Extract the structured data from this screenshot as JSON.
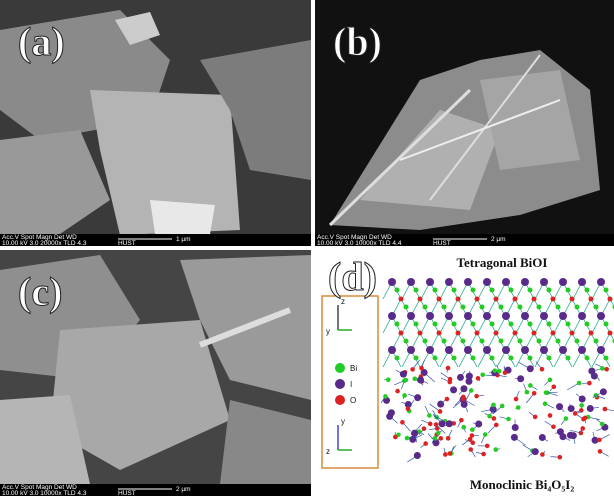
{
  "panels": [
    {
      "label": "(a)",
      "info_header": "Acc.V  Spot  Magn   Det  WD",
      "info_values": "10.00 kV 3.0  20000x  TLD  4.3",
      "scale": "1 µm",
      "lab": "HUST"
    },
    {
      "label": "(b)",
      "info_header": "Acc.V  Spot  Magn   Det  WD",
      "info_values": "10.00 kV 3.0  10000x  TLD  4.4",
      "scale": "2 µm",
      "lab": "HUST"
    },
    {
      "label": "(c)",
      "info_header": "Acc.V  Spot  Magn   Det  WD",
      "info_values": "10.00 kV 3.0  10000x  TLD  4.3",
      "scale": "2 µm",
      "lab": "HUST"
    },
    {
      "label": "(d)",
      "top_title": "Tetragonal BiOI",
      "bottom_title": "Monoclinic Bi₄O₅I₂",
      "legend": [
        "Bi",
        "I",
        "O"
      ],
      "axes_top": [
        "z",
        "y"
      ],
      "axes_bottom": [
        "z",
        "y"
      ]
    }
  ]
}
